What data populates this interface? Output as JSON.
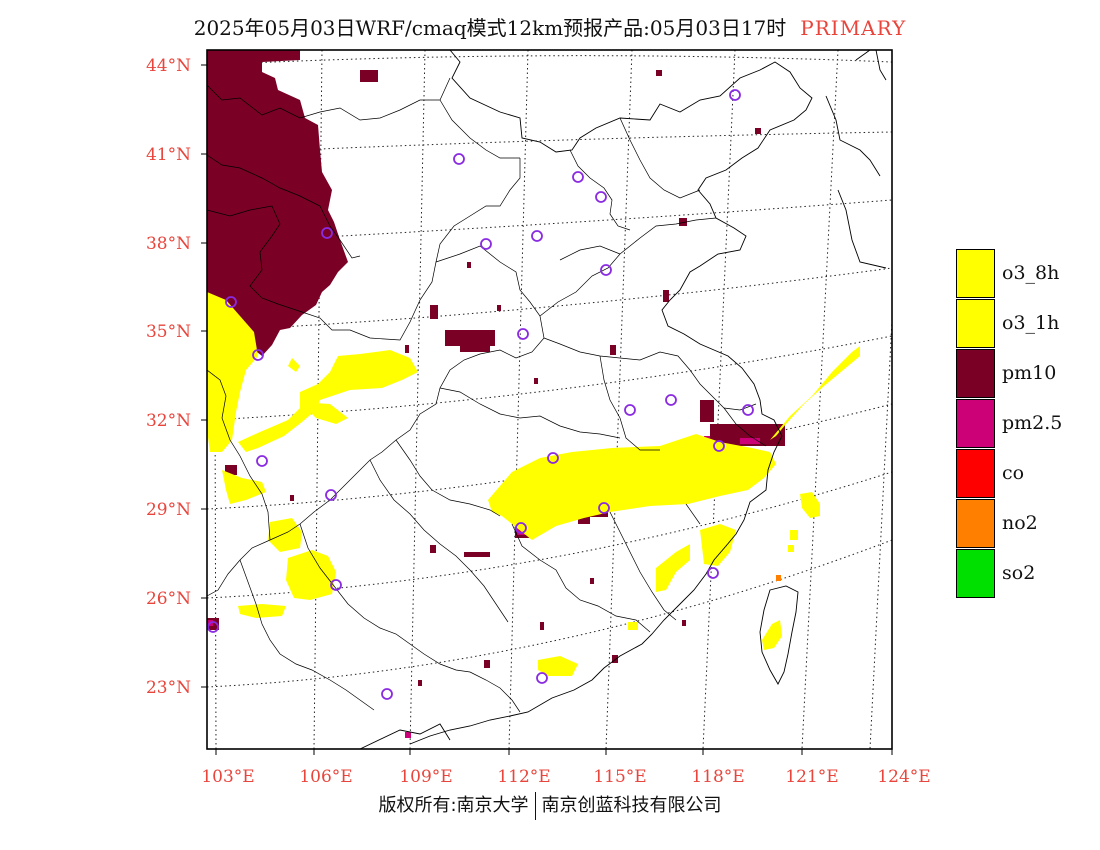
{
  "title": {
    "main": "2025年05月03日WRF/cmaq模式12km预报产品:05月03日17时",
    "tag": "PRIMARY"
  },
  "map": {
    "lat_labels": [
      "44°N",
      "41°N",
      "38°N",
      "35°N",
      "32°N",
      "29°N",
      "26°N",
      "23°N"
    ],
    "lon_labels": [
      "103°E",
      "106°E",
      "109°E",
      "112°E",
      "115°E",
      "118°E",
      "121°E",
      "124°E"
    ]
  },
  "legend": {
    "items": [
      {
        "label": "o3_8h",
        "color": "#ffff00"
      },
      {
        "label": "o3_1h",
        "color": "#ffff00"
      },
      {
        "label": "pm10",
        "color": "#7a0026"
      },
      {
        "label": "pm2.5",
        "color": "#cc0077"
      },
      {
        "label": "co",
        "color": "#ff0000"
      },
      {
        "label": "no2",
        "color": "#ff7f00"
      },
      {
        "label": "so2",
        "color": "#00e000"
      }
    ]
  },
  "copyright": {
    "left": "版权所有:南京大学",
    "right": "南京创蓝科技有限公司"
  },
  "colors": {
    "o3": "#ffff00",
    "pm10": "#7a0026",
    "pm25": "#cc0077",
    "station_ring": "#8a2be2",
    "label_red": "#e8453c"
  }
}
